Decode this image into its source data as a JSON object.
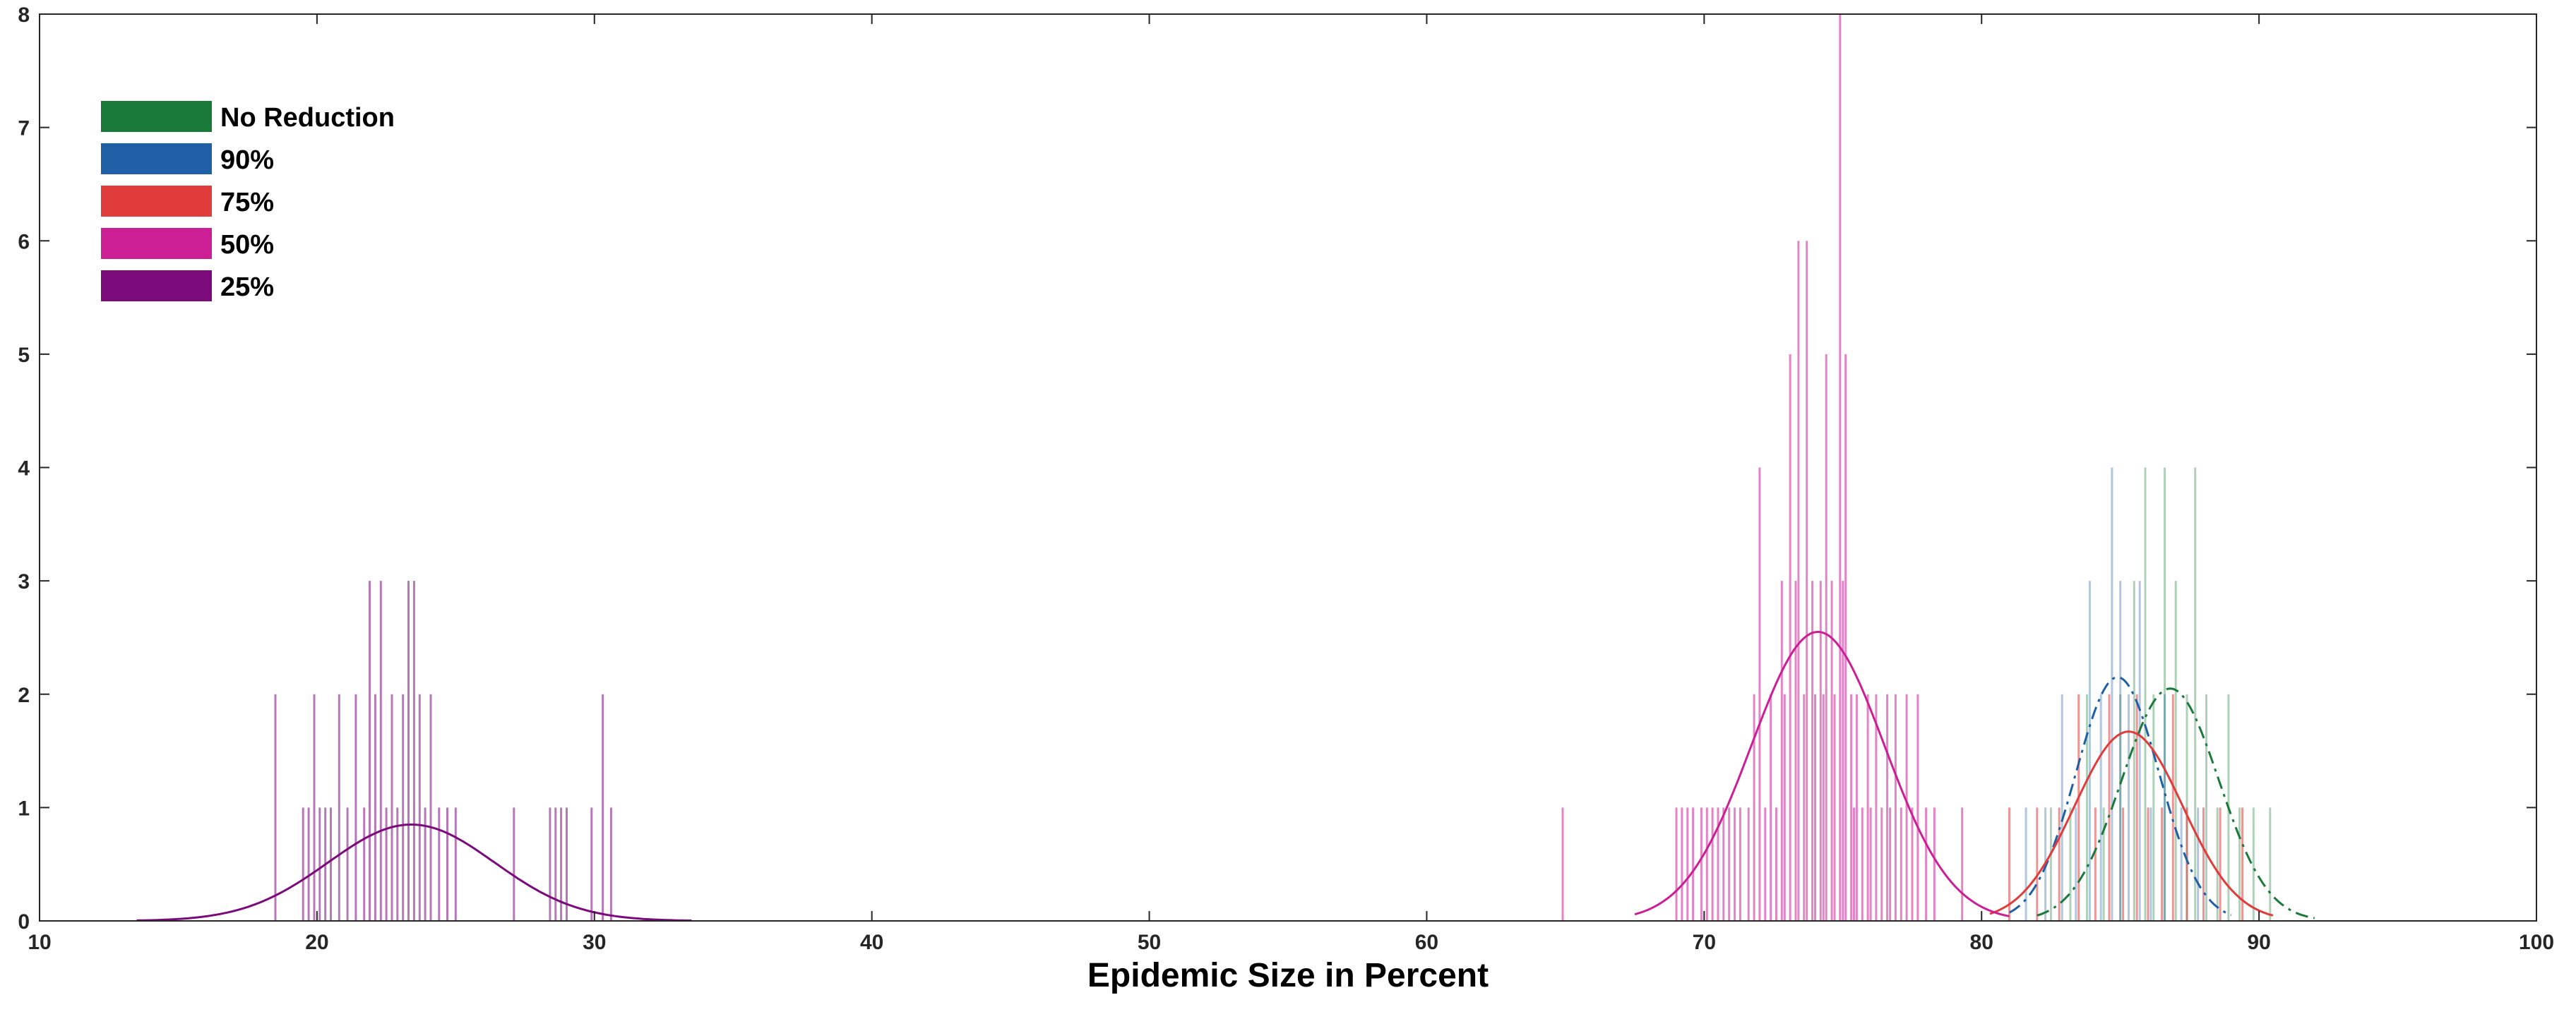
{
  "chart_data": {
    "type": "bar",
    "title": "",
    "xlabel": "Epidemic Size in Percent",
    "ylabel": "",
    "xlim": [
      10,
      100
    ],
    "ylim": [
      0,
      8
    ],
    "x_ticks": [
      10,
      20,
      30,
      40,
      50,
      60,
      70,
      80,
      90,
      100
    ],
    "y_ticks": [
      0,
      1,
      2,
      3,
      4,
      5,
      6,
      7,
      8
    ],
    "grid": false,
    "legend_position": "top-left",
    "series": [
      {
        "name": "No Reduction",
        "color": "#1a7a3a",
        "style": "histogram + dash-dot normal fit",
        "fit": {
          "mu": 86.8,
          "sigma": 1.75,
          "peak": 2.05,
          "range": [
            82,
            92
          ]
        },
        "bins": [
          [
            82.5,
            1
          ],
          [
            83.2,
            1
          ],
          [
            83.8,
            2
          ],
          [
            84.4,
            1
          ],
          [
            85.0,
            2
          ],
          [
            85.5,
            3
          ],
          [
            85.9,
            4
          ],
          [
            86.2,
            2
          ],
          [
            86.6,
            4
          ],
          [
            87.0,
            3
          ],
          [
            87.4,
            2
          ],
          [
            87.7,
            4
          ],
          [
            88.1,
            2
          ],
          [
            88.5,
            1
          ],
          [
            88.9,
            2
          ],
          [
            89.3,
            1
          ],
          [
            89.8,
            1
          ],
          [
            90.4,
            1
          ]
        ]
      },
      {
        "name": "90%",
        "color": "#1f5fa6",
        "style": "histogram + dash-dot normal fit",
        "fit": {
          "mu": 84.9,
          "sigma": 1.5,
          "peak": 2.15,
          "range": [
            81,
            89
          ]
        },
        "bins": [
          [
            81.6,
            1
          ],
          [
            82.3,
            1
          ],
          [
            82.9,
            2
          ],
          [
            83.4,
            1
          ],
          [
            83.9,
            3
          ],
          [
            84.3,
            2
          ],
          [
            84.7,
            4
          ],
          [
            85.0,
            3
          ],
          [
            85.3,
            2
          ],
          [
            85.7,
            3
          ],
          [
            86.1,
            1
          ],
          [
            86.6,
            2
          ],
          [
            87.2,
            1
          ],
          [
            87.8,
            1
          ]
        ]
      },
      {
        "name": "75%",
        "color": "#e03c3c",
        "style": "histogram + normal fit",
        "fit": {
          "mu": 85.3,
          "sigma": 1.95,
          "peak": 1.67,
          "range": [
            80.3,
            90.5
          ]
        },
        "bins": [
          [
            81.0,
            1
          ],
          [
            82.0,
            1
          ],
          [
            82.8,
            1
          ],
          [
            83.5,
            2
          ],
          [
            84.1,
            1
          ],
          [
            84.6,
            2
          ],
          [
            85.1,
            1
          ],
          [
            85.6,
            2
          ],
          [
            86.0,
            1
          ],
          [
            86.5,
            1
          ],
          [
            86.9,
            2
          ],
          [
            87.4,
            1
          ],
          [
            88.0,
            1
          ],
          [
            88.6,
            1
          ],
          [
            89.4,
            1
          ]
        ]
      },
      {
        "name": "50%",
        "color": "#cc1f96",
        "style": "histogram + normal fit",
        "fit": {
          "mu": 74.1,
          "sigma": 2.4,
          "peak": 2.55,
          "range": [
            67.5,
            81
          ]
        },
        "bins": [
          [
            64.9,
            1
          ],
          [
            69.0,
            1
          ],
          [
            69.2,
            1
          ],
          [
            69.4,
            1
          ],
          [
            69.6,
            1
          ],
          [
            69.9,
            1
          ],
          [
            70.1,
            1
          ],
          [
            70.3,
            1
          ],
          [
            70.5,
            1
          ],
          [
            70.7,
            1
          ],
          [
            70.9,
            1
          ],
          [
            71.1,
            1
          ],
          [
            71.3,
            1
          ],
          [
            71.6,
            1
          ],
          [
            71.8,
            2
          ],
          [
            72.0,
            4
          ],
          [
            72.2,
            1
          ],
          [
            72.4,
            2
          ],
          [
            72.6,
            1
          ],
          [
            72.8,
            3
          ],
          [
            72.9,
            2
          ],
          [
            73.1,
            5
          ],
          [
            73.3,
            3
          ],
          [
            73.4,
            6
          ],
          [
            73.6,
            2
          ],
          [
            73.7,
            6
          ],
          [
            73.9,
            3
          ],
          [
            74.0,
            2
          ],
          [
            74.2,
            3
          ],
          [
            74.3,
            2
          ],
          [
            74.4,
            5
          ],
          [
            74.6,
            3
          ],
          [
            74.7,
            2
          ],
          [
            74.9,
            8
          ],
          [
            75.0,
            3
          ],
          [
            75.1,
            5
          ],
          [
            75.3,
            2
          ],
          [
            75.4,
            1
          ],
          [
            75.5,
            2
          ],
          [
            75.7,
            1
          ],
          [
            75.9,
            2
          ],
          [
            76.0,
            1
          ],
          [
            76.2,
            2
          ],
          [
            76.4,
            1
          ],
          [
            76.6,
            2
          ],
          [
            76.7,
            1
          ],
          [
            76.9,
            2
          ],
          [
            77.1,
            1
          ],
          [
            77.3,
            2
          ],
          [
            77.5,
            1
          ],
          [
            77.7,
            2
          ],
          [
            78.0,
            1
          ],
          [
            78.3,
            1
          ],
          [
            79.3,
            1
          ]
        ]
      },
      {
        "name": "25%",
        "color": "#7b0a7b",
        "style": "histogram + normal fit",
        "fit": {
          "mu": 23.4,
          "sigma": 3.0,
          "peak": 0.85,
          "range": [
            13.5,
            33.5
          ]
        },
        "bins": [
          [
            18.5,
            2
          ],
          [
            19.5,
            1
          ],
          [
            19.7,
            1
          ],
          [
            19.9,
            2
          ],
          [
            20.1,
            1
          ],
          [
            20.3,
            1
          ],
          [
            20.5,
            1
          ],
          [
            20.8,
            2
          ],
          [
            21.1,
            1
          ],
          [
            21.4,
            2
          ],
          [
            21.7,
            1
          ],
          [
            21.9,
            3
          ],
          [
            22.1,
            2
          ],
          [
            22.3,
            3
          ],
          [
            22.5,
            1
          ],
          [
            22.7,
            2
          ],
          [
            22.9,
            1
          ],
          [
            23.1,
            2
          ],
          [
            23.3,
            3
          ],
          [
            23.5,
            3
          ],
          [
            23.7,
            2
          ],
          [
            23.9,
            1
          ],
          [
            24.1,
            2
          ],
          [
            24.4,
            1
          ],
          [
            24.7,
            1
          ],
          [
            25.0,
            1
          ],
          [
            27.1,
            1
          ],
          [
            28.4,
            1
          ],
          [
            28.6,
            1
          ],
          [
            28.8,
            1
          ],
          [
            29.0,
            1
          ],
          [
            29.9,
            1
          ],
          [
            30.3,
            2
          ],
          [
            30.6,
            1
          ]
        ]
      }
    ]
  }
}
